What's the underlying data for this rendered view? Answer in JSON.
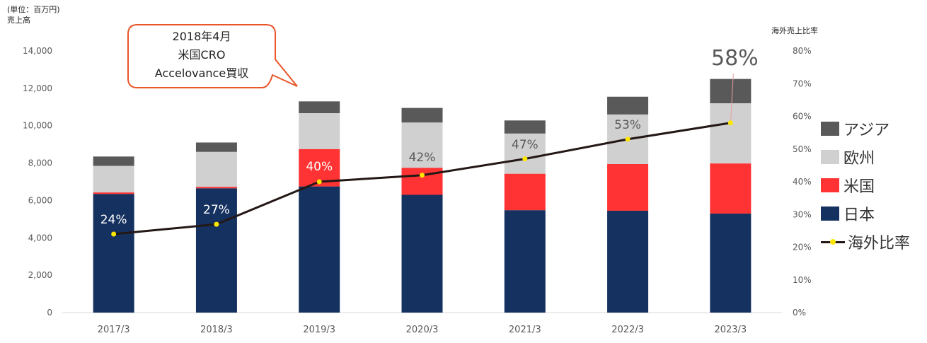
{
  "unit_label": [
    "(単位：百万円)",
    "売上高"
  ],
  "y2_title": "海外売上比率",
  "callout": [
    "2018年4月",
    "米国CRO",
    "Accelovance買収"
  ],
  "legend": [
    {
      "label": "アジア",
      "color": "#595959"
    },
    {
      "label": "欧州",
      "color": "#d0d0d0"
    },
    {
      "label": "米国",
      "color": "#ff3333"
    },
    {
      "label": "日本",
      "color": "#15315f"
    },
    {
      "label": "海外比率",
      "type": "line"
    }
  ],
  "chart_data": {
    "type": "bar",
    "stacked": true,
    "categories": [
      "2017/3",
      "2018/3",
      "2019/3",
      "2020/3",
      "2021/3",
      "2022/3",
      "2023/3"
    ],
    "series": [
      {
        "name": "日本",
        "color": "#15315f",
        "values": [
          6350,
          6650,
          6750,
          6300,
          5480,
          5450,
          5300
        ]
      },
      {
        "name": "米国",
        "color": "#ff3333",
        "values": [
          80,
          80,
          2000,
          1450,
          1950,
          2500,
          2680
        ]
      },
      {
        "name": "欧州",
        "color": "#d0d0d0",
        "values": [
          1420,
          1870,
          1920,
          2420,
          2150,
          2650,
          3220
        ]
      },
      {
        "name": "アジア",
        "color": "#595959",
        "values": [
          500,
          500,
          630,
          780,
          700,
          950,
          1300
        ]
      }
    ],
    "line_series": {
      "name": "海外比率",
      "color": "#231815",
      "marker_color": "#ffe600",
      "values": [
        24,
        27,
        40,
        42,
        47,
        53,
        58
      ],
      "labels": [
        "24%",
        "27%",
        "40%",
        "42%",
        "47%",
        "53%",
        "58%"
      ]
    },
    "y_ticks": [
      "0",
      "2,000",
      "4,000",
      "6,000",
      "8,000",
      "10,000",
      "12,000",
      "14,000"
    ],
    "y2_ticks": [
      "0%",
      "10%",
      "20%",
      "30%",
      "40%",
      "50%",
      "60%",
      "70%",
      "80%"
    ],
    "ylim": [
      0,
      14000
    ],
    "y2lim": [
      0,
      80
    ],
    "grid": false,
    "legend_position": "right"
  }
}
